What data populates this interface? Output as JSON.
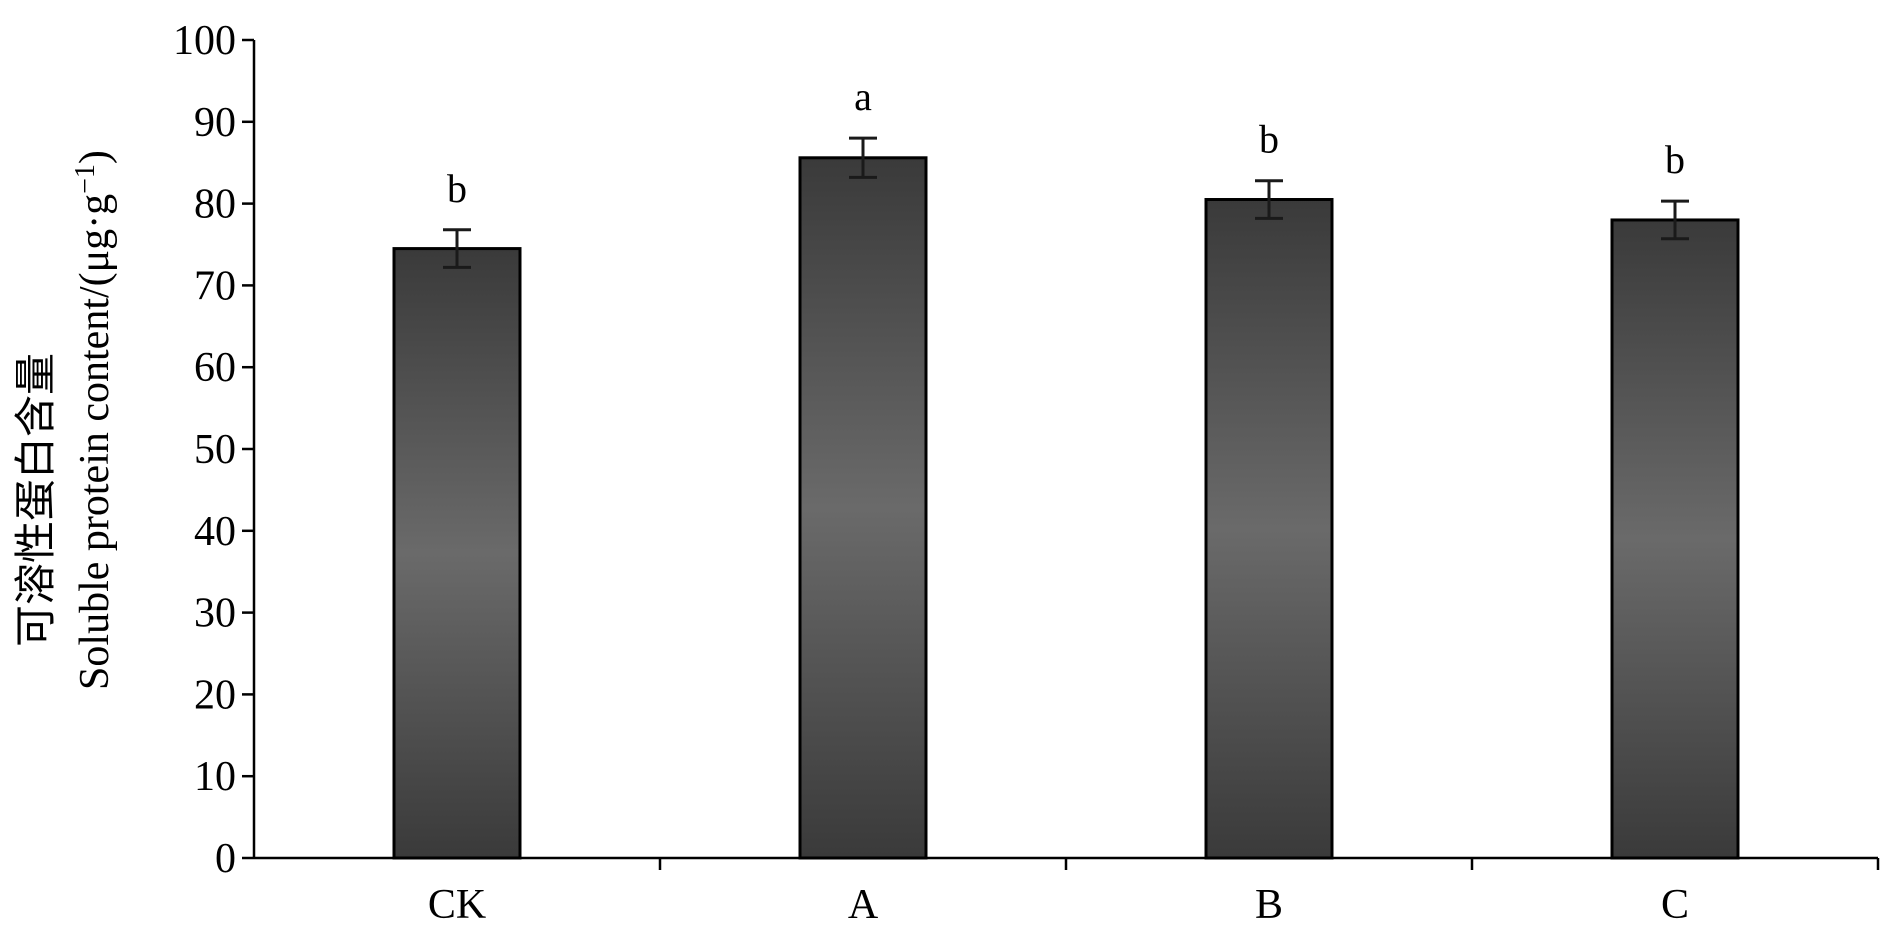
{
  "chart_data": {
    "type": "bar",
    "categories": [
      "CK",
      "A",
      "B",
      "C"
    ],
    "values": [
      74.5,
      85.6,
      80.5,
      78.0
    ],
    "errors": [
      2.3,
      2.4,
      2.3,
      2.3
    ],
    "significance": [
      "b",
      "a",
      "b",
      "b"
    ],
    "ylabel_cn": "可溶性蛋白含量",
    "ylabel_en": "Soluble protein content/(μg·g",
    "ylabel_sup": "−1",
    "ylabel_end": ")",
    "ylim": [
      0,
      100
    ],
    "yticks": [
      "0",
      "10",
      "20",
      "30",
      "40",
      "50",
      "60",
      "70",
      "80",
      "90",
      "100"
    ],
    "grid": false,
    "bar_color": "#404040",
    "bar_highlight": "#6a6a6a"
  }
}
